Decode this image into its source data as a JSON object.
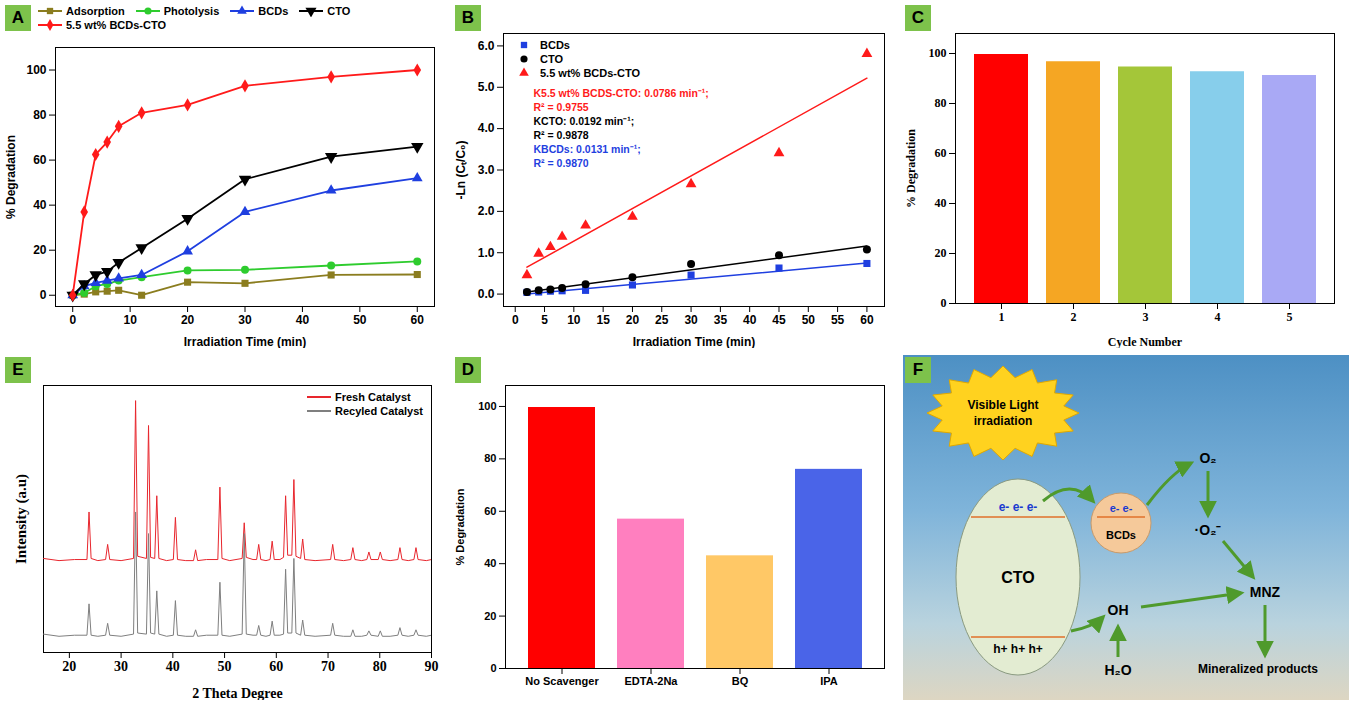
{
  "chart_data": [
    {
      "panel_label": "A",
      "type": "line",
      "x": [
        0,
        2,
        4,
        6,
        8,
        12,
        20,
        30,
        45,
        60
      ],
      "xlabel": "Irradiation Time (min)",
      "ylabel": "% Degradation",
      "xlim": [
        -3,
        63
      ],
      "ylim": [
        -5,
        110
      ],
      "xticks": [
        0,
        10,
        20,
        30,
        40,
        50,
        60
      ],
      "yticks": [
        0,
        20,
        40,
        60,
        80,
        100
      ],
      "legend": "top",
      "series": [
        {
          "name": "Adsorption",
          "color": "#8b7d1f",
          "marker": "square",
          "values": [
            0,
            0.5,
            1.5,
            1.8,
            2.2,
            0,
            5.8,
            5.3,
            9,
            9.2
          ]
        },
        {
          "name": "Photolysis",
          "color": "#2ecc2e",
          "marker": "circle",
          "values": [
            0,
            1,
            4,
            5,
            6.5,
            8,
            11,
            11.3,
            13.2,
            15
          ]
        },
        {
          "name": "BCDs",
          "color": "#1f3fe0",
          "marker": "triangle",
          "values": [
            0,
            4,
            5.5,
            6.5,
            7.5,
            9,
            19.5,
            37,
            46.5,
            52
          ]
        },
        {
          "name": "CTO",
          "color": "#000000",
          "marker": "triangle-down",
          "values": [
            0,
            5,
            9,
            10.5,
            14.5,
            21,
            34,
            51.5,
            61.5,
            66
          ]
        },
        {
          "name": "5.5 wt% BCDs-CTO",
          "color": "#ff1a1a",
          "marker": "diamond",
          "values": [
            0,
            37,
            62.5,
            68,
            75,
            81,
            84.5,
            93,
            97,
            100
          ]
        }
      ]
    },
    {
      "panel_label": "B",
      "type": "scatter",
      "x": [
        2,
        4,
        6,
        8,
        12,
        20,
        30,
        45,
        60
      ],
      "xlabel": "Irradiation Time (min)",
      "ylabel": "-Ln (Cₜ/C₀)",
      "xlim": [
        -2,
        63
      ],
      "ylim": [
        -0.3,
        6.3
      ],
      "xticks": [
        0,
        5,
        10,
        15,
        20,
        25,
        30,
        35,
        40,
        45,
        50,
        55,
        60
      ],
      "yticks": [
        0,
        1,
        2,
        3,
        4,
        5,
        6
      ],
      "legend": "top-left",
      "fit_x": [
        2,
        60
      ],
      "series": [
        {
          "name": "BCDs",
          "color": "#1f3fe0",
          "marker": "square",
          "values": [
            0.04,
            0.05,
            0.07,
            0.08,
            0.09,
            0.22,
            0.46,
            0.63,
            0.74
          ],
          "fit": [
            0.0,
            0.75
          ]
        },
        {
          "name": "CTO",
          "color": "#000000",
          "marker": "circle",
          "values": [
            0.05,
            0.09,
            0.11,
            0.15,
            0.24,
            0.41,
            0.73,
            0.94,
            1.08
          ],
          "fit": [
            0.05,
            1.16
          ]
        },
        {
          "name": "5.5 wt% BCDs-CTO",
          "color": "#ff1a1a",
          "marker": "triangle",
          "values": [
            0.46,
            0.98,
            1.14,
            1.39,
            1.66,
            1.87,
            2.66,
            3.41,
            5.81
          ],
          "fit": [
            0.65,
            5.22
          ]
        }
      ],
      "annotations": [
        {
          "text": "K5.5 wt% BCDS-CTO: 0.0786 min⁻¹;",
          "color": "#ff1a1a"
        },
        {
          "text": "R² = 0.9755",
          "color": "#ff1a1a"
        },
        {
          "text": "KCTO: 0.0192 min⁻¹;",
          "color": "#000000"
        },
        {
          "text": "R² = 0.9878",
          "color": "#000000"
        },
        {
          "text": "KBCDs: 0.0131 min⁻¹;",
          "color": "#1f3fe0"
        },
        {
          "text": "R² = 0.9870",
          "color": "#1f3fe0"
        }
      ]
    },
    {
      "panel_label": "C",
      "type": "bar",
      "categories": [
        1,
        2,
        3,
        4,
        5
      ],
      "values": [
        99.6,
        96.7,
        94.6,
        92.7,
        91.2
      ],
      "colors": [
        "#ff0000",
        "#f5a623",
        "#a4c639",
        "#87ceeb",
        "#a9a9f5"
      ],
      "xlabel": "Cycle Number",
      "ylabel": "% Degradation",
      "ylim": [
        0,
        108
      ],
      "yticks": [
        0,
        20,
        40,
        60,
        80,
        100
      ]
    },
    {
      "panel_label": "E",
      "type": "line",
      "x": [
        15,
        18,
        21,
        23.4,
        23.8,
        24.2,
        25.5,
        27,
        27.4,
        27.8,
        30,
        32.4,
        32.8,
        33.2,
        34.9,
        35.3,
        35.7,
        36.5,
        36.9,
        37.3,
        38.8,
        40.1,
        40.5,
        40.9,
        42.5,
        44,
        44.4,
        44.8,
        46.5,
        48.7,
        49.1,
        49.5,
        51,
        53.4,
        53.8,
        54.2,
        55.5,
        56.2,
        56.6,
        57,
        58,
        58.8,
        59.2,
        59.6,
        60.7,
        61.4,
        61.8,
        62.2,
        63,
        63.4,
        63.8,
        64.7,
        65.1,
        65.5,
        67.5,
        70.5,
        70.9,
        71.3,
        73,
        74.4,
        74.8,
        75.2,
        76.5,
        77.5,
        77.9,
        78.3,
        79.7,
        80.1,
        80.5,
        82,
        83.5,
        83.9,
        84.3,
        85.5,
        86.6,
        87,
        87.4,
        89,
        90
      ],
      "xlabel": "2 Theta Degree",
      "ylabel": "Intensity (a.u)",
      "xlim": [
        15,
        90
      ],
      "ylim": [
        -15,
        232
      ],
      "xticks": [
        20,
        30,
        40,
        50,
        60,
        70,
        80,
        90
      ],
      "tick_labels": "x",
      "legend": "top-right",
      "series": [
        {
          "name": "Fresh Catalyst",
          "color": "#e8262d",
          "values": [
            72,
            70,
            71,
            71,
            115,
            72,
            70,
            71,
            85,
            71,
            70,
            72,
            218,
            74,
            72,
            195,
            73,
            72,
            130,
            72,
            70,
            71,
            110,
            71,
            70,
            70,
            80,
            70,
            71,
            71,
            138,
            72,
            70,
            72,
            105,
            73,
            71,
            71,
            85,
            71,
            70,
            71,
            88,
            71,
            71,
            73,
            130,
            75,
            75,
            145,
            74,
            72,
            90,
            71,
            70,
            71,
            85,
            71,
            70,
            71,
            82,
            71,
            70,
            71,
            78,
            71,
            71,
            78,
            71,
            70,
            71,
            82,
            71,
            70,
            71,
            82,
            71,
            70,
            71
          ]
        },
        {
          "name": "Recyled Catalyst",
          "color": "#7f7f7f",
          "values": [
            2,
            0,
            1,
            1,
            30,
            1,
            0,
            1,
            12,
            1,
            0,
            2,
            115,
            3,
            2,
            95,
            3,
            2,
            42,
            2,
            0,
            1,
            33,
            1,
            0,
            0,
            6,
            0,
            1,
            1,
            50,
            1,
            0,
            2,
            95,
            2,
            1,
            1,
            10,
            1,
            0,
            1,
            14,
            1,
            1,
            2,
            62,
            3,
            3,
            72,
            3,
            1,
            15,
            1,
            0,
            1,
            12,
            1,
            0,
            0,
            6,
            0,
            0,
            1,
            5,
            1,
            0,
            5,
            0,
            0,
            1,
            8,
            1,
            0,
            1,
            6,
            1,
            0,
            1
          ]
        }
      ]
    },
    {
      "panel_label": "D",
      "type": "bar",
      "categories": [
        "No Scavenger",
        "EDTA-2Na",
        "BQ",
        "IPA"
      ],
      "values": [
        99.6,
        57,
        43,
        76
      ],
      "colors": [
        "#ff0000",
        "#ff7fbf",
        "#ffc866",
        "#4a64e8"
      ],
      "ylabel": "% Degradation",
      "ylim": [
        0,
        108
      ],
      "yticks": [
        0,
        20,
        40,
        60,
        80,
        100
      ]
    }
  ],
  "diagram": {
    "panel_label": "F",
    "light": [
      "Visible Light",
      "irradiation"
    ],
    "semiconductor": "CTO",
    "dots": "BCDs",
    "electrons_cto": "e- e- e-",
    "electrons_bcds": "e- e-",
    "holes": "h+ h+ h+",
    "oxygen": "O₂",
    "superoxide": "·O₂⁻",
    "hydroxyl": "OH",
    "water": "H₂O",
    "pollutant": "MNZ",
    "products": "Mineralized products"
  }
}
